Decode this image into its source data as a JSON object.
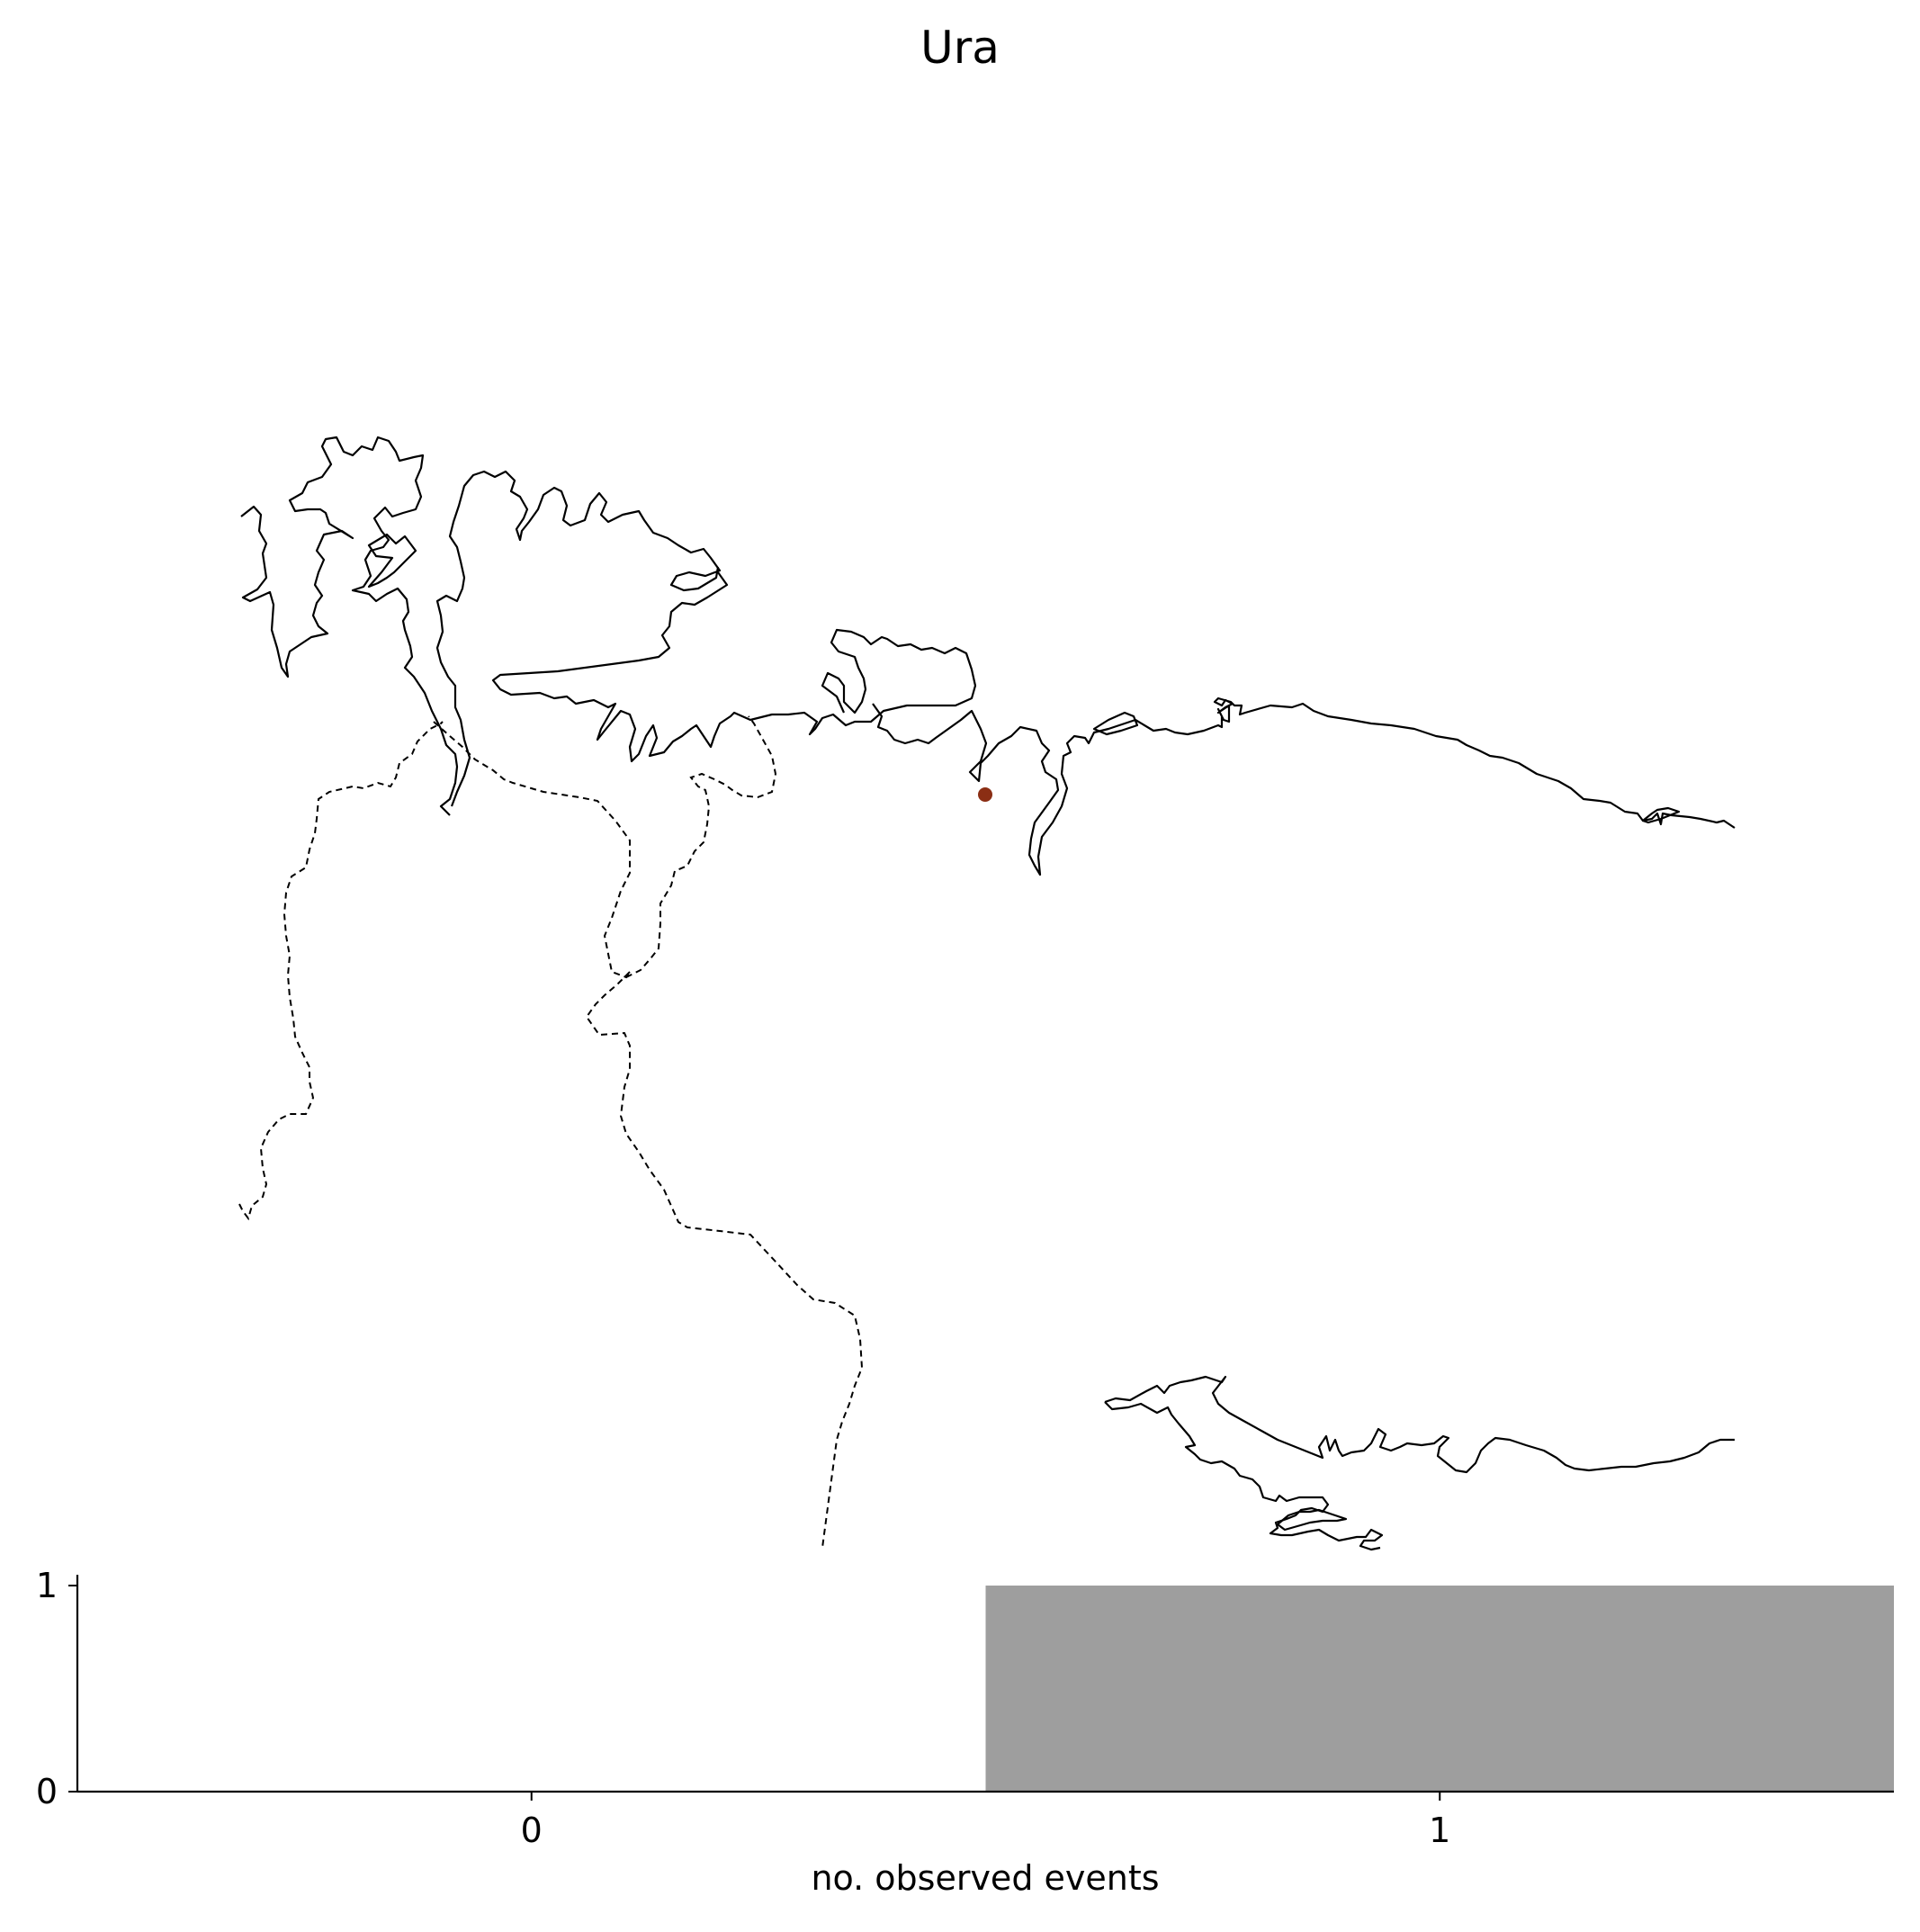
{
  "title": "Ura",
  "map": {
    "marker_color": "#8b2e14",
    "line_color": "#000000"
  },
  "chart_data": {
    "type": "bar",
    "categories": [
      "0",
      "1"
    ],
    "values": [
      0,
      1
    ],
    "xlabel": "no. observed events",
    "ylabel": "",
    "ylim": [
      0,
      1
    ],
    "yticks": [
      "0",
      "1"
    ],
    "bar_color": "#9e9e9e",
    "grid": false
  }
}
